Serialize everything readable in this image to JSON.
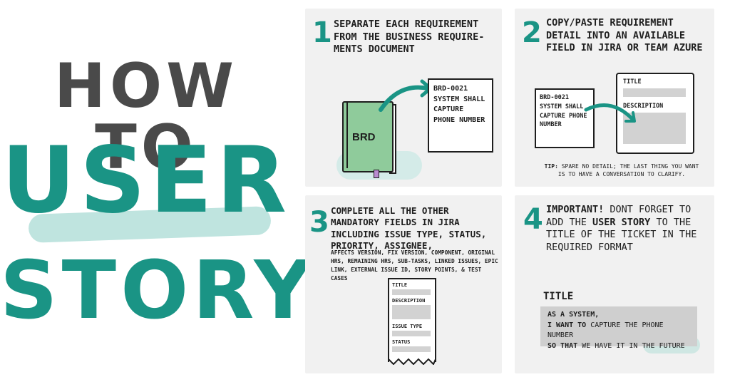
{
  "title": {
    "line1": "HOW TO",
    "line2": "USER",
    "line3": "STORY"
  },
  "panels": [
    {
      "number": "1",
      "text": "Separate each requirement from the business require-ments document",
      "book_label": "BRD",
      "card_lines": [
        "BRD-0021",
        "System shall",
        "capture",
        "phone number"
      ]
    },
    {
      "number": "2",
      "text": "Copy/paste requirement detail into an available field in Jira or Team Azure",
      "card_lines": [
        "BRD-0021",
        "System shall",
        "capture phone",
        "number"
      ],
      "form_title": "Title",
      "form_description": "Description",
      "tip_label": "Tip:",
      "tip_text": "Spare no detail; the last thing you want is to have a conversation to clarify."
    },
    {
      "number": "3",
      "text": "Complete all the other mandatory fields in Jira including issue type, status, priority, assignee,",
      "small_text": "affects version, fix version, component, original hrs, remaining hrs, sub-tasks, linked issues, epic link, external issue ID, story points, & test cases",
      "ticket_fields": [
        "Title",
        "Description",
        "Issue type",
        "Status"
      ]
    },
    {
      "number": "4",
      "important": "Important!",
      "text_a": " Dont forget to add the ",
      "emph": "user story",
      "text_b": " to the title of the ticket in the required format",
      "title_label": "TITLE",
      "story_line1": "As a system,",
      "story_line2_bold": "I want to",
      "story_line2": " capture the phone number",
      "story_line3_bold": "so that",
      "story_line3": " we have it in the future"
    }
  ],
  "colors": {
    "teal": "#1a9485",
    "dark": "#4a4a4a",
    "book_green": "#8fcb9b",
    "panel_bg": "#f1f1f1"
  }
}
